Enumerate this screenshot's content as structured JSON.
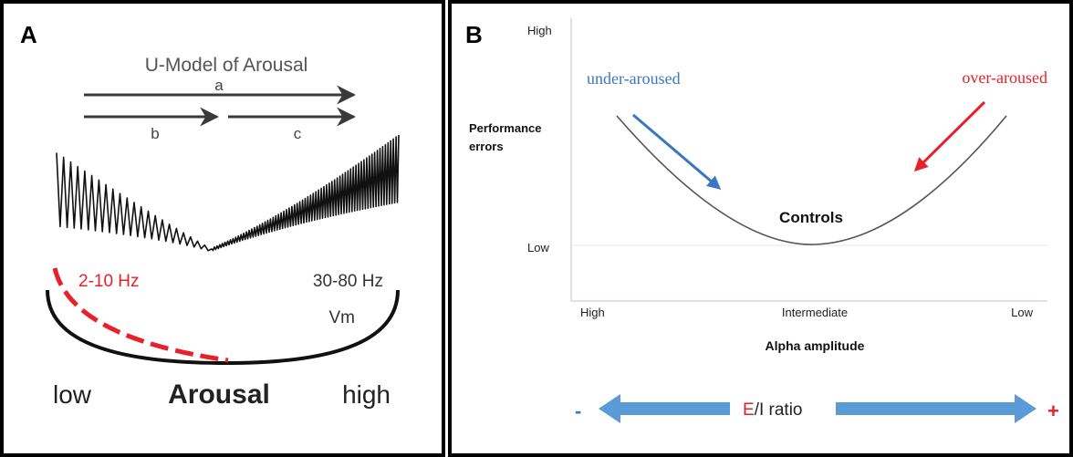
{
  "panel_a": {
    "panel_label": "A",
    "title": "U-Model of Arousal",
    "arrow_labels": {
      "a": "a",
      "b": "b",
      "c": "c"
    },
    "freq_low": "2-10 Hz",
    "freq_high": "30-80 Hz",
    "vm_label": "Vm",
    "axis_low": "low",
    "axis_center": "Arousal",
    "axis_high": "high",
    "colors": {
      "red": "#e8202a",
      "dark": "#1a1a1a",
      "gray": "#555555"
    }
  },
  "panel_b": {
    "panel_label": "B",
    "y_high": "High",
    "y_low": "Low",
    "y_title_line1": "Performance",
    "y_title_line2": "errors",
    "label_under": "under-aroused",
    "label_over": "over-aroused",
    "curve_label": "Controls",
    "x_ticks": [
      "High",
      "Intermediate",
      "Low"
    ],
    "x_title": "Alpha amplitude",
    "ratio_minus": "-",
    "ratio_e": "E",
    "ratio_rest": "/I ratio",
    "ratio_plus": "+",
    "colors": {
      "blue": "#3a78c2",
      "red": "#e8202a",
      "light_blue": "#5b9bd5",
      "axis": "#d6d6e6"
    }
  }
}
